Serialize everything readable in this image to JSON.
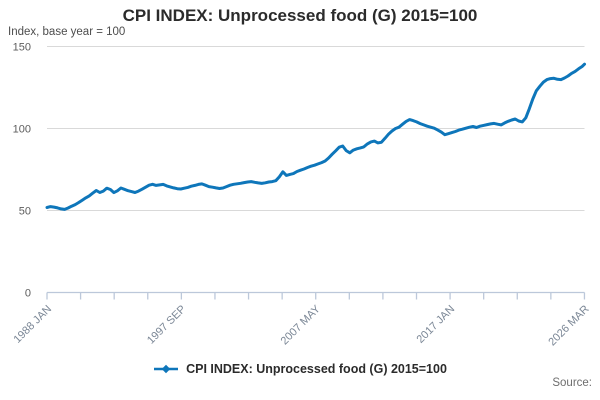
{
  "page": {
    "title": "CPI INDEX: Unprocessed food (G) 2015=100",
    "subtitle": "Index, base year = 100",
    "source_label": "Source:",
    "legend": {
      "label": "CPI INDEX: Unprocessed food (G) 2015=100",
      "marker_icon": "line-with-diamond-icon"
    }
  },
  "chart_data": {
    "type": "line",
    "title": "CPI INDEX: Unprocessed food (G) 2015=100",
    "subtitle": "Index, base year = 100",
    "xlabel": "",
    "ylabel": "Index, base year = 100",
    "xlim": [
      1988.0,
      2026.17
    ],
    "ylim": [
      0,
      150
    ],
    "grid": "horizontal-only",
    "legend_position": "bottom-center",
    "yticks": [
      0,
      50,
      100,
      150
    ],
    "ytick_labels": [
      "0",
      "50",
      "100",
      "150"
    ],
    "xticks": [
      1988.0,
      1990.385,
      1992.771,
      1995.156,
      1997.542,
      1999.927,
      2002.313,
      2004.698,
      2007.083,
      2009.469,
      2011.854,
      2014.24,
      2016.625,
      2019.01,
      2021.396,
      2023.781,
      2026.167
    ],
    "xtick_labels": [
      "1988 JAN",
      "",
      "",
      "",
      "1997 SEP",
      "",
      "",
      "",
      "2007 MAY",
      "",
      "",
      "",
      "2017 JAN",
      "",
      "",
      "",
      "2026 MAR"
    ],
    "colors": {
      "series": "#0e76ba",
      "grid": "#d9d9d9",
      "axis": "#bcc8da",
      "ytick_text": "#5c5c5c",
      "xtick_text": "#7b8796"
    },
    "series": [
      {
        "name": "CPI INDEX: Unprocessed food (G) 2015=100",
        "color": "#0e76ba",
        "x": [
          1988.0,
          1988.25,
          1988.5,
          1988.75,
          1989.0,
          1989.25,
          1989.5,
          1989.75,
          1990.0,
          1990.25,
          1990.5,
          1990.75,
          1991.0,
          1991.25,
          1991.5,
          1991.75,
          1992.0,
          1992.25,
          1992.5,
          1992.75,
          1993.0,
          1993.25,
          1993.5,
          1993.75,
          1994.0,
          1994.25,
          1994.5,
          1994.75,
          1995.0,
          1995.25,
          1995.5,
          1995.75,
          1996.0,
          1996.25,
          1996.5,
          1996.75,
          1997.0,
          1997.25,
          1997.5,
          1997.75,
          1998.0,
          1998.25,
          1998.5,
          1998.75,
          1999.0,
          1999.25,
          1999.5,
          1999.75,
          2000.0,
          2000.25,
          2000.5,
          2000.75,
          2001.0,
          2001.25,
          2001.5,
          2001.75,
          2002.0,
          2002.25,
          2002.5,
          2002.75,
          2003.0,
          2003.25,
          2003.5,
          2003.75,
          2004.0,
          2004.25,
          2004.5,
          2004.75,
          2005.0,
          2005.25,
          2005.5,
          2005.75,
          2006.0,
          2006.25,
          2006.5,
          2006.75,
          2007.0,
          2007.25,
          2007.5,
          2007.75,
          2008.0,
          2008.25,
          2008.5,
          2008.75,
          2009.0,
          2009.25,
          2009.5,
          2009.75,
          2010.0,
          2010.25,
          2010.5,
          2010.75,
          2011.0,
          2011.25,
          2011.5,
          2011.75,
          2012.0,
          2012.25,
          2012.5,
          2012.75,
          2013.0,
          2013.25,
          2013.5,
          2013.75,
          2014.0,
          2014.25,
          2014.5,
          2014.75,
          2015.0,
          2015.25,
          2015.5,
          2015.75,
          2016.0,
          2016.25,
          2016.5,
          2016.75,
          2017.0,
          2017.25,
          2017.5,
          2017.75,
          2018.0,
          2018.25,
          2018.5,
          2018.75,
          2019.0,
          2019.25,
          2019.5,
          2019.75,
          2020.0,
          2020.25,
          2020.5,
          2020.75,
          2021.0,
          2021.25,
          2021.5,
          2021.75,
          2022.0,
          2022.25,
          2022.5,
          2022.75,
          2023.0,
          2023.25,
          2023.5,
          2023.75,
          2024.0,
          2024.25,
          2024.5,
          2024.75,
          2025.0,
          2025.25,
          2025.5,
          2025.75,
          2026.0,
          2026.17
        ],
        "values": [
          51.8,
          52.4,
          52.1,
          51.6,
          51.0,
          50.7,
          51.5,
          52.6,
          53.6,
          54.9,
          56.3,
          57.7,
          58.9,
          60.6,
          62.2,
          61.0,
          61.8,
          63.6,
          62.8,
          60.9,
          62.0,
          63.7,
          62.9,
          62.1,
          61.5,
          61.0,
          61.8,
          63.0,
          64.2,
          65.4,
          66.0,
          65.3,
          65.6,
          65.9,
          65.0,
          64.4,
          63.8,
          63.3,
          63.1,
          63.6,
          64.1,
          64.8,
          65.3,
          65.9,
          66.2,
          65.4,
          64.6,
          64.2,
          63.8,
          63.4,
          63.7,
          64.6,
          65.4,
          66.0,
          66.3,
          66.6,
          67.0,
          67.4,
          67.6,
          67.2,
          66.8,
          66.5,
          66.9,
          67.4,
          67.6,
          68.2,
          70.5,
          73.6,
          71.4,
          72.0,
          72.5,
          73.8,
          74.6,
          75.3,
          76.2,
          77.0,
          77.6,
          78.4,
          79.2,
          80.2,
          82.0,
          84.3,
          86.4,
          88.6,
          89.3,
          86.5,
          85.2,
          86.8,
          87.6,
          88.2,
          88.8,
          90.6,
          91.8,
          92.3,
          91.2,
          91.6,
          94.0,
          96.5,
          98.5,
          100.0,
          100.8,
          102.6,
          104.3,
          105.4,
          104.8,
          104.0,
          103.0,
          102.2,
          101.4,
          100.8,
          100.2,
          99.0,
          97.8,
          96.2,
          96.8,
          97.5,
          98.2,
          99.0,
          99.6,
          100.2,
          100.8,
          101.2,
          100.6,
          101.4,
          101.9,
          102.4,
          102.8,
          103.1,
          102.6,
          102.2,
          103.4,
          104.4,
          105.2,
          105.8,
          104.6,
          104.0,
          106.5,
          112.0,
          118.0,
          123.0,
          125.8,
          128.3,
          129.8,
          130.4,
          130.6,
          130.0,
          129.8,
          130.8,
          132.0,
          133.6,
          134.8,
          136.4,
          137.8,
          139.2
        ]
      }
    ]
  }
}
